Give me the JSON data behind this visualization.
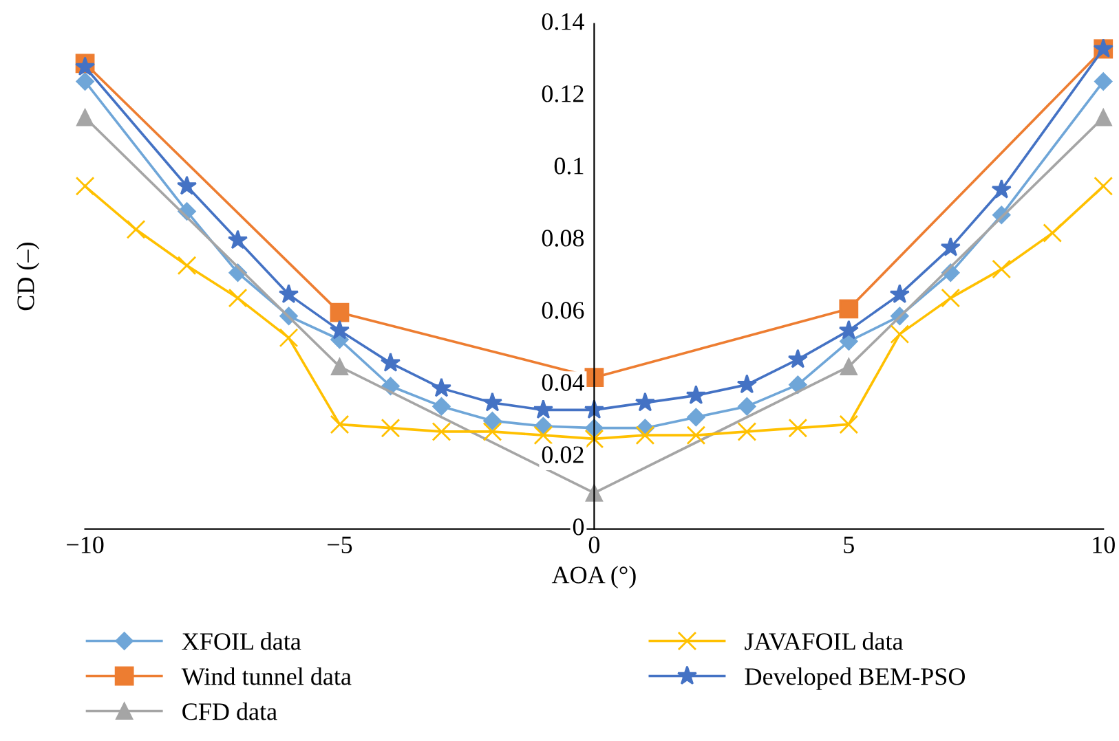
{
  "chart_data": {
    "type": "line",
    "xlabel": "AOA (°)",
    "ylabel": "CD (–)",
    "xlim": [
      -10,
      10
    ],
    "ylim": [
      0,
      0.14
    ],
    "xticks": [
      {
        "value": -10,
        "label": "−10"
      },
      {
        "value": -5,
        "label": "−5"
      },
      0,
      5,
      10
    ],
    "yticks": [
      0,
      0.02,
      0.04,
      0.06,
      0.08,
      0.1,
      0.12,
      0.14
    ],
    "grid": false,
    "legend": "bottom",
    "series": [
      {
        "name": "XFOIL data",
        "color": "#6fa6d8",
        "marker": "diamond",
        "x": [
          -10,
          -8,
          -7,
          -6,
          -5,
          -4,
          -3,
          -2,
          -1,
          0,
          1,
          2,
          3,
          4,
          5,
          6,
          7,
          8,
          10
        ],
        "values": [
          0.124,
          0.088,
          0.071,
          0.059,
          0.0525,
          0.0396,
          0.034,
          0.03,
          0.0285,
          0.028,
          0.028,
          0.031,
          0.034,
          0.04,
          0.052,
          0.059,
          0.071,
          0.087,
          0.124
        ]
      },
      {
        "name": "Wind tunnel data",
        "color": "#ed7d31",
        "marker": "square",
        "x": [
          -10,
          -5,
          0,
          5,
          10
        ],
        "values": [
          0.129,
          0.06,
          0.042,
          0.061,
          0.133
        ]
      },
      {
        "name": "CFD data",
        "color": "#a5a5a5",
        "marker": "triangle",
        "x": [
          -10,
          -5,
          0,
          5,
          10
        ],
        "values": [
          0.114,
          0.045,
          0.01,
          0.045,
          0.114
        ]
      },
      {
        "name": "JAVAFOIL data",
        "color": "#ffc000",
        "marker": "cross",
        "x": [
          -10,
          -9,
          -8,
          -7,
          -6,
          -5,
          -4,
          -3,
          -2,
          -1,
          0,
          1,
          2,
          3,
          4,
          5,
          6,
          7,
          8,
          9,
          10
        ],
        "values": [
          0.095,
          0.083,
          0.073,
          0.064,
          0.053,
          0.029,
          0.028,
          0.027,
          0.027,
          0.026,
          0.025,
          0.026,
          0.026,
          0.027,
          0.028,
          0.029,
          0.054,
          0.064,
          0.072,
          0.082,
          0.095
        ]
      },
      {
        "name": "Developed BEM-PSO",
        "color": "#4472c4",
        "marker": "star",
        "x": [
          -10,
          -8,
          -7,
          -6,
          -5,
          -4,
          -3,
          -2,
          -1,
          0,
          1,
          2,
          3,
          4,
          5,
          6,
          7,
          8,
          10
        ],
        "values": [
          0.128,
          0.095,
          0.08,
          0.065,
          0.055,
          0.046,
          0.039,
          0.035,
          0.033,
          0.033,
          0.035,
          0.037,
          0.04,
          0.047,
          0.055,
          0.065,
          0.078,
          0.094,
          0.133
        ]
      }
    ]
  }
}
